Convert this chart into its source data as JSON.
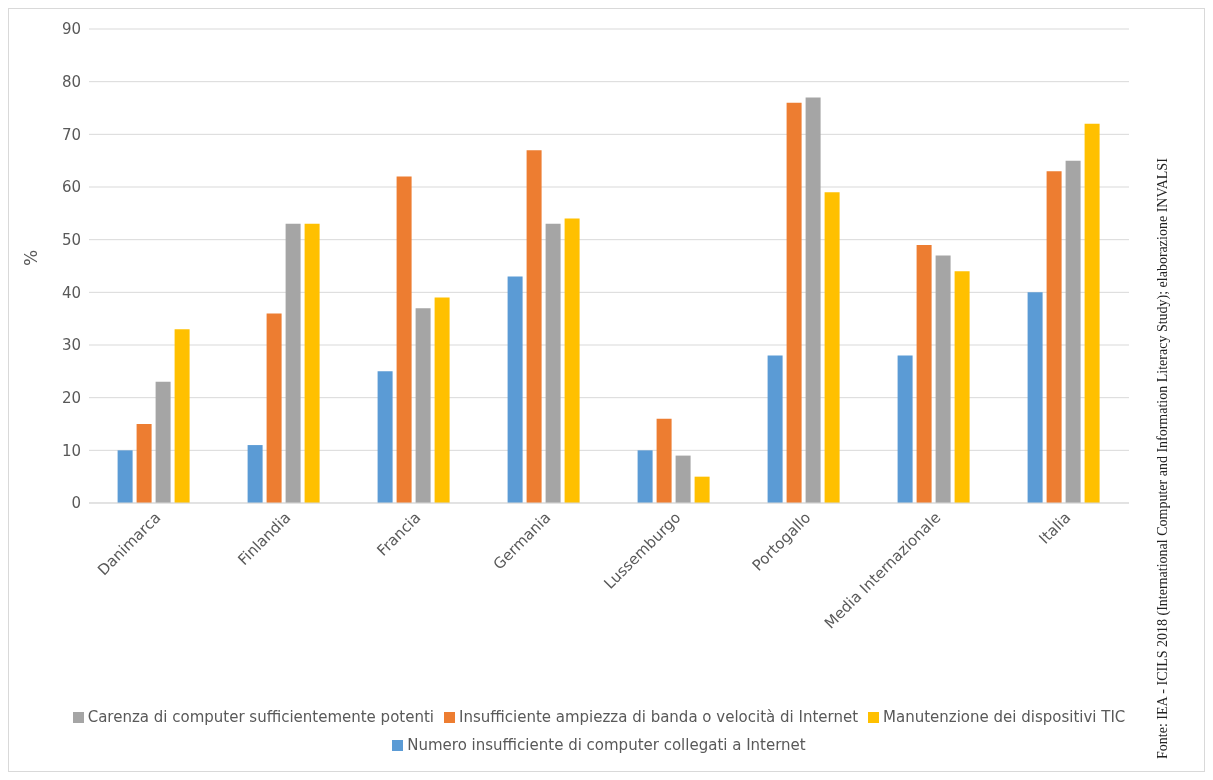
{
  "chart_data": {
    "type": "bar",
    "ylabel": "%",
    "categories": [
      "Danimarca",
      "Finlandia",
      "Francia",
      "Germania",
      "Lussemburgo",
      "Portogallo",
      "Media Internazionale",
      "Italia"
    ],
    "series": [
      {
        "name": "Numero insufficiente di computer collegati a Internet",
        "color": "#5b9bd5",
        "values": [
          10,
          11,
          25,
          43,
          10,
          28,
          28,
          40
        ]
      },
      {
        "name": "Insufficiente ampiezza di banda o velocità di Internet",
        "color": "#ed7d31",
        "values": [
          15,
          36,
          62,
          67,
          16,
          76,
          49,
          63
        ]
      },
      {
        "name": "Carenza di computer sufficientemente potenti",
        "color": "#a5a5a5",
        "values": [
          23,
          53,
          37,
          53,
          9,
          77,
          47,
          65
        ]
      },
      {
        "name": "Manutenzione dei dispositivi TIC",
        "color": "#ffc000",
        "values": [
          33,
          53,
          39,
          54,
          5,
          59,
          44,
          72
        ]
      }
    ],
    "ylim": [
      0,
      90
    ],
    "yticks": [
      0,
      10,
      20,
      30,
      40,
      50,
      60,
      70,
      80,
      90
    ],
    "grid": "y",
    "legend": "bottom",
    "annotations": [
      "Fonte: IEA - ICILS 2018 (International Computer and Information Literacy Study); elaborazione INVALSI"
    ]
  }
}
